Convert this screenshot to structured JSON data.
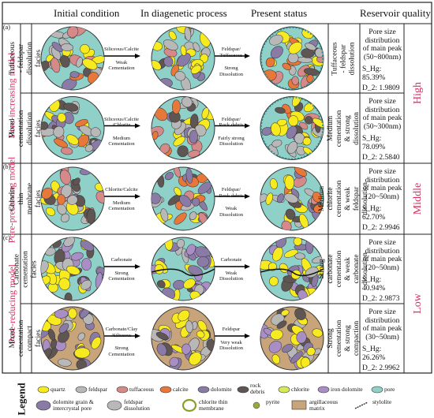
{
  "headers": {
    "initial": "Initial condition",
    "diagenetic": "In diagenetic process",
    "present": "Present status",
    "quality": "Reservoir quality"
  },
  "models": [
    {
      "tag": "(a)",
      "label": "Pore-increasing model",
      "quality": "High"
    },
    {
      "tag": "(b)",
      "label": "Pore-preserving model",
      "quality": "Middle"
    },
    {
      "tag": "(c)",
      "label": "Pore-reducing model",
      "quality": "Low"
    }
  ],
  "rows": [
    {
      "facies": "Tuffaceous - feldspar dissolution facies",
      "arrow1": [
        "Siliceous/Calcite",
        "Weak",
        "Cementation"
      ],
      "arrow2": [
        "Feldspar/",
        "Tuffaceous",
        "Strong",
        "Dissolution"
      ],
      "status": "Tuffaceous - feldspar dissolution",
      "stat": [
        "Pore size",
        "distribution",
        "of main peak",
        "(50~800nm)"
      ],
      "shg": "S_Hg: 85.39%",
      "d": "D_2: 1.9809",
      "matrix": "#8fd0c9"
    },
    {
      "facies": "Mixed cementation dissolution facies",
      "arrow1": [
        "Siliceous/Calcite",
        "/Chlorite",
        "Medium",
        "Cementation"
      ],
      "arrow2": [
        "Feldspar/",
        "Rock debris",
        "Fairly strong",
        "Dissolution"
      ],
      "status": "Medium cementation & strong dissolution",
      "stat": [
        "Pore size",
        "distribution",
        "of main peak",
        "(50~300nm)"
      ],
      "shg": "S_Hg: 78.09%",
      "d": "D_2: 2.5840",
      "matrix": "#8fd0c9"
    },
    {
      "facies": "Chlorite thin membrane facies",
      "arrow1": [
        "Chlorite/Calcite",
        "Medium",
        "Cementation"
      ],
      "arrow2": [
        "Feldspar/",
        "Rock debris",
        "Weak",
        "Dissolution"
      ],
      "status": "Medium chlorite cementation & weak feldspar dissolution",
      "stat": [
        "Pore size",
        "distribution",
        "of main peak",
        "(20~50nm)"
      ],
      "shg": "S_Hg: 62.70%",
      "d": "D_2: 2.9946",
      "matrix": "#8fd0c9"
    },
    {
      "facies": "Carbonate cementation facies",
      "arrow1": [
        "Carbonate",
        "Strong",
        "Cementation"
      ],
      "arrow2": [
        "Carbonate",
        "Weak",
        "Dissolution"
      ],
      "status": "Strong carbonate cementation & weak carbonate dissolution",
      "stat": [
        "Pore size",
        "distribution",
        "of main peak",
        "(20~50nm)"
      ],
      "shg": "S_Hg: 40.94%",
      "d": "D_2: 2.9873",
      "matrix": "#8fd0c9"
    },
    {
      "facies": "Mixed cementation compact facies",
      "arrow1": [
        "Carbonate/Clay",
        "/Siliceous",
        "Strong",
        "Cementation"
      ],
      "arrow2": [
        "Feldspar",
        "Very weak",
        "Dissolution"
      ],
      "status": "Strong cementation & strong compaction",
      "stat": [
        "Pore size",
        "distribution",
        "of main peak",
        "(30~50nm)"
      ],
      "shg": "S_Hg: 26.26%",
      "d": "D_2: 2.9962",
      "matrix": "#c7a47a"
    }
  ],
  "legend": {
    "title": "Legend",
    "items": [
      "quartz",
      "feldspar",
      "tuffaceous",
      "calcite",
      "dolomite",
      "rock debris",
      "chlorite",
      "iron dolomite",
      "pore",
      "dolomite grain & intercrystal pore",
      "feldspar dissolution",
      "chlorite thin membrane",
      "pyrite",
      "argillaceous matrix",
      "stylolite"
    ]
  },
  "colors": {
    "quartz": "#f7ea1f",
    "feldspar": "#b8b8b8",
    "tuffaceous": "#d58989",
    "calcite": "#e8773a",
    "dolomite": "#8a7aa6",
    "debris": "#5f5552",
    "chlorite": "#d8e85a",
    "iron_dolomite": "#a88ec4",
    "pore": "#8fd0c9",
    "accent": "#d3325f"
  }
}
